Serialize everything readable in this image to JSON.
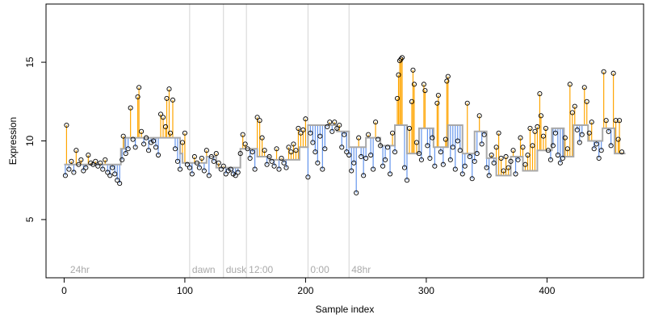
{
  "chart_data": {
    "type": "scatter",
    "title": "",
    "xlabel": "Sample index",
    "ylabel": "Expression",
    "xlim": [
      -15,
      480
    ],
    "ylim": [
      1.3,
      18.7
    ],
    "x_ticks": [
      0,
      100,
      200,
      300,
      400
    ],
    "y_ticks": [
      5,
      10,
      15
    ],
    "grid": false,
    "colors": {
      "up_stem": "#ffa500",
      "down_stem": "#6495ed",
      "fit_line": "#a9a9a9",
      "marker_edge": "#000000",
      "separator": "#d3d3d3",
      "annotation": "#a9a9a9"
    },
    "annotations": [
      {
        "x": 3,
        "label": "24hr"
      },
      {
        "x": 104,
        "label": "dawn"
      },
      {
        "x": 132,
        "label": "dusk"
      },
      {
        "x": 151,
        "label": "12:00"
      },
      {
        "x": 202,
        "label": "0:00"
      },
      {
        "x": 236,
        "label": "48hr"
      }
    ],
    "separators": [
      104,
      132,
      151,
      202,
      236
    ],
    "fit_segments": [
      {
        "x0": 0,
        "x1": 47,
        "y": 8.5
      },
      {
        "x0": 47,
        "x1": 50,
        "y": 9.5
      },
      {
        "x0": 50,
        "x1": 96,
        "y": 10.2
      },
      {
        "x0": 96,
        "x1": 98,
        "y": 9.2
      },
      {
        "x0": 98,
        "x1": 118,
        "y": 8.6
      },
      {
        "x0": 118,
        "x1": 126,
        "y": 9.0
      },
      {
        "x0": 126,
        "x1": 146,
        "y": 8.3
      },
      {
        "x0": 146,
        "x1": 160,
        "y": 9.5
      },
      {
        "x0": 160,
        "x1": 170,
        "y": 9.0
      },
      {
        "x0": 170,
        "x1": 195,
        "y": 8.8
      },
      {
        "x0": 195,
        "x1": 202,
        "y": 9.6
      },
      {
        "x0": 202,
        "x1": 226,
        "y": 11.0
      },
      {
        "x0": 226,
        "x1": 236,
        "y": 10.6
      },
      {
        "x0": 236,
        "x1": 250,
        "y": 9.6
      },
      {
        "x0": 250,
        "x1": 262,
        "y": 10.2
      },
      {
        "x0": 262,
        "x1": 274,
        "y": 9.7
      },
      {
        "x0": 274,
        "x1": 284,
        "y": 11.0
      },
      {
        "x0": 284,
        "x1": 294,
        "y": 9.2
      },
      {
        "x0": 294,
        "x1": 306,
        "y": 10.8
      },
      {
        "x0": 306,
        "x1": 318,
        "y": 9.6
      },
      {
        "x0": 318,
        "x1": 330,
        "y": 11.0
      },
      {
        "x0": 330,
        "x1": 340,
        "y": 9.2
      },
      {
        "x0": 340,
        "x1": 350,
        "y": 10.6
      },
      {
        "x0": 350,
        "x1": 358,
        "y": 8.9
      },
      {
        "x0": 358,
        "x1": 370,
        "y": 7.8
      },
      {
        "x0": 370,
        "x1": 380,
        "y": 9.0
      },
      {
        "x0": 380,
        "x1": 392,
        "y": 8.1
      },
      {
        "x0": 392,
        "x1": 404,
        "y": 9.4
      },
      {
        "x0": 404,
        "x1": 414,
        "y": 10.8
      },
      {
        "x0": 414,
        "x1": 422,
        "y": 9.0
      },
      {
        "x0": 422,
        "x1": 434,
        "y": 11.0
      },
      {
        "x0": 434,
        "x1": 446,
        "y": 10.0
      },
      {
        "x0": 446,
        "x1": 456,
        "y": 10.8
      },
      {
        "x0": 456,
        "x1": 465,
        "y": 9.2
      }
    ],
    "points": [
      [
        1,
        7.8
      ],
      [
        2,
        11.0
      ],
      [
        4,
        8.2
      ],
      [
        6,
        8.7
      ],
      [
        8,
        8.0
      ],
      [
        10,
        9.4
      ],
      [
        12,
        8.5
      ],
      [
        14,
        8.8
      ],
      [
        16,
        8.1
      ],
      [
        18,
        8.3
      ],
      [
        20,
        9.1
      ],
      [
        22,
        8.6
      ],
      [
        24,
        8.5
      ],
      [
        26,
        8.7
      ],
      [
        28,
        8.4
      ],
      [
        30,
        8.6
      ],
      [
        32,
        8.2
      ],
      [
        34,
        8.8
      ],
      [
        36,
        8.0
      ],
      [
        38,
        7.8
      ],
      [
        40,
        8.3
      ],
      [
        42,
        7.9
      ],
      [
        44,
        7.5
      ],
      [
        46,
        7.3
      ],
      [
        48,
        8.8
      ],
      [
        49,
        10.3
      ],
      [
        51,
        9.2
      ],
      [
        53,
        9.5
      ],
      [
        55,
        12.1
      ],
      [
        57,
        10.1
      ],
      [
        59,
        9.6
      ],
      [
        61,
        12.8
      ],
      [
        62,
        13.4
      ],
      [
        64,
        10.6
      ],
      [
        66,
        9.8
      ],
      [
        68,
        10.2
      ],
      [
        70,
        9.4
      ],
      [
        72,
        9.9
      ],
      [
        74,
        10.0
      ],
      [
        76,
        9.6
      ],
      [
        78,
        9.1
      ],
      [
        80,
        11.7
      ],
      [
        82,
        11.5
      ],
      [
        84,
        10.9
      ],
      [
        85,
        12.7
      ],
      [
        87,
        13.3
      ],
      [
        88,
        10.5
      ],
      [
        90,
        12.6
      ],
      [
        92,
        9.5
      ],
      [
        94,
        8.7
      ],
      [
        96,
        8.2
      ],
      [
        98,
        9.9
      ],
      [
        100,
        10.5
      ],
      [
        102,
        8.5
      ],
      [
        104,
        8.3
      ],
      [
        106,
        7.9
      ],
      [
        108,
        9.0
      ],
      [
        110,
        8.6
      ],
      [
        112,
        8.3
      ],
      [
        114,
        8.9
      ],
      [
        116,
        8.1
      ],
      [
        118,
        9.4
      ],
      [
        120,
        7.8
      ],
      [
        122,
        9.0
      ],
      [
        124,
        8.7
      ],
      [
        126,
        9.2
      ],
      [
        128,
        8.6
      ],
      [
        130,
        8.2
      ],
      [
        132,
        8.4
      ],
      [
        134,
        7.9
      ],
      [
        136,
        8.1
      ],
      [
        138,
        8.2
      ],
      [
        140,
        7.9
      ],
      [
        142,
        7.8
      ],
      [
        144,
        8.0
      ],
      [
        146,
        9.2
      ],
      [
        148,
        10.4
      ],
      [
        150,
        9.8
      ],
      [
        152,
        9.5
      ],
      [
        154,
        8.9
      ],
      [
        156,
        9.3
      ],
      [
        158,
        8.2
      ],
      [
        160,
        11.5
      ],
      [
        162,
        11.3
      ],
      [
        164,
        10.2
      ],
      [
        166,
        9.4
      ],
      [
        168,
        8.5
      ],
      [
        170,
        9.0
      ],
      [
        172,
        8.7
      ],
      [
        174,
        8.4
      ],
      [
        176,
        9.5
      ],
      [
        178,
        8.2
      ],
      [
        180,
        8.9
      ],
      [
        182,
        8.6
      ],
      [
        184,
        8.3
      ],
      [
        186,
        9.6
      ],
      [
        188,
        9.3
      ],
      [
        190,
        9.8
      ],
      [
        192,
        9.4
      ],
      [
        194,
        10.8
      ],
      [
        196,
        10.5
      ],
      [
        198,
        10.7
      ],
      [
        200,
        11.4
      ],
      [
        202,
        7.7
      ],
      [
        204,
        10.5
      ],
      [
        206,
        9.9
      ],
      [
        208,
        9.3
      ],
      [
        210,
        8.6
      ],
      [
        212,
        10.3
      ],
      [
        214,
        8.2
      ],
      [
        216,
        9.5
      ],
      [
        218,
        10.9
      ],
      [
        220,
        11.2
      ],
      [
        222,
        10.6
      ],
      [
        224,
        11.2
      ],
      [
        226,
        10.8
      ],
      [
        228,
        11.0
      ],
      [
        230,
        9.6
      ],
      [
        232,
        10.4
      ],
      [
        234,
        9.3
      ],
      [
        236,
        9.1
      ],
      [
        238,
        8.1
      ],
      [
        240,
        8.6
      ],
      [
        242,
        6.7
      ],
      [
        244,
        10.2
      ],
      [
        246,
        9.0
      ],
      [
        248,
        7.8
      ],
      [
        250,
        8.9
      ],
      [
        252,
        10.4
      ],
      [
        254,
        9.1
      ],
      [
        256,
        8.2
      ],
      [
        258,
        11.2
      ],
      [
        260,
        10.1
      ],
      [
        262,
        9.7
      ],
      [
        264,
        8.4
      ],
      [
        266,
        8.8
      ],
      [
        268,
        9.6
      ],
      [
        270,
        7.9
      ],
      [
        272,
        10.5
      ],
      [
        274,
        9.3
      ],
      [
        276,
        12.7
      ],
      [
        277,
        14.2
      ],
      [
        278,
        15.1
      ],
      [
        279,
        15.2
      ],
      [
        280,
        15.3
      ],
      [
        282,
        8.3
      ],
      [
        284,
        7.5
      ],
      [
        286,
        10.8
      ],
      [
        288,
        12.5
      ],
      [
        289,
        14.5
      ],
      [
        290,
        13.6
      ],
      [
        292,
        9.9
      ],
      [
        294,
        9.2
      ],
      [
        296,
        8.8
      ],
      [
        298,
        13.6
      ],
      [
        299,
        13.2
      ],
      [
        301,
        9.7
      ],
      [
        303,
        8.9
      ],
      [
        305,
        10.2
      ],
      [
        307,
        8.4
      ],
      [
        309,
        12.4
      ],
      [
        310,
        12.9
      ],
      [
        312,
        9.3
      ],
      [
        314,
        8.5
      ],
      [
        316,
        10.1
      ],
      [
        317,
        13.8
      ],
      [
        318,
        14.1
      ],
      [
        320,
        8.8
      ],
      [
        322,
        9.6
      ],
      [
        324,
        8.2
      ],
      [
        326,
        10.0
      ],
      [
        328,
        9.4
      ],
      [
        330,
        7.9
      ],
      [
        332,
        8.4
      ],
      [
        334,
        12.4
      ],
      [
        336,
        9.0
      ],
      [
        338,
        7.6
      ],
      [
        340,
        8.7
      ],
      [
        342,
        9.2
      ],
      [
        344,
        11.6
      ],
      [
        346,
        9.8
      ],
      [
        348,
        10.4
      ],
      [
        350,
        8.3
      ],
      [
        352,
        7.8
      ],
      [
        354,
        9.1
      ],
      [
        356,
        8.6
      ],
      [
        358,
        9.6
      ],
      [
        360,
        10.5
      ],
      [
        362,
        8.9
      ],
      [
        364,
        8.1
      ],
      [
        366,
        9.0
      ],
      [
        368,
        8.3
      ],
      [
        370,
        8.7
      ],
      [
        372,
        9.4
      ],
      [
        374,
        7.9
      ],
      [
        376,
        8.8
      ],
      [
        378,
        10.2
      ],
      [
        380,
        9.6
      ],
      [
        382,
        8.5
      ],
      [
        384,
        9.1
      ],
      [
        386,
        10.8
      ],
      [
        388,
        9.7
      ],
      [
        390,
        10.6
      ],
      [
        392,
        10.9
      ],
      [
        394,
        13.0
      ],
      [
        395,
        11.6
      ],
      [
        397,
        10.3
      ],
      [
        399,
        10.8
      ],
      [
        401,
        9.4
      ],
      [
        403,
        8.8
      ],
      [
        405,
        9.7
      ],
      [
        407,
        10.5
      ],
      [
        409,
        9.1
      ],
      [
        411,
        8.6
      ],
      [
        413,
        8.9
      ],
      [
        415,
        10.2
      ],
      [
        417,
        9.5
      ],
      [
        419,
        13.6
      ],
      [
        421,
        11.8
      ],
      [
        423,
        12.2
      ],
      [
        425,
        10.7
      ],
      [
        427,
        9.9
      ],
      [
        429,
        10.4
      ],
      [
        431,
        13.4
      ],
      [
        433,
        12.5
      ],
      [
        435,
        10.5
      ],
      [
        437,
        11.2
      ],
      [
        439,
        9.5
      ],
      [
        441,
        9.8
      ],
      [
        443,
        8.9
      ],
      [
        445,
        9.4
      ],
      [
        447,
        14.4
      ],
      [
        449,
        11.3
      ],
      [
        451,
        10.6
      ],
      [
        453,
        9.7
      ],
      [
        455,
        14.3
      ],
      [
        457,
        11.3
      ],
      [
        459,
        10.1
      ],
      [
        460,
        11.3
      ],
      [
        462,
        9.3
      ]
    ]
  }
}
